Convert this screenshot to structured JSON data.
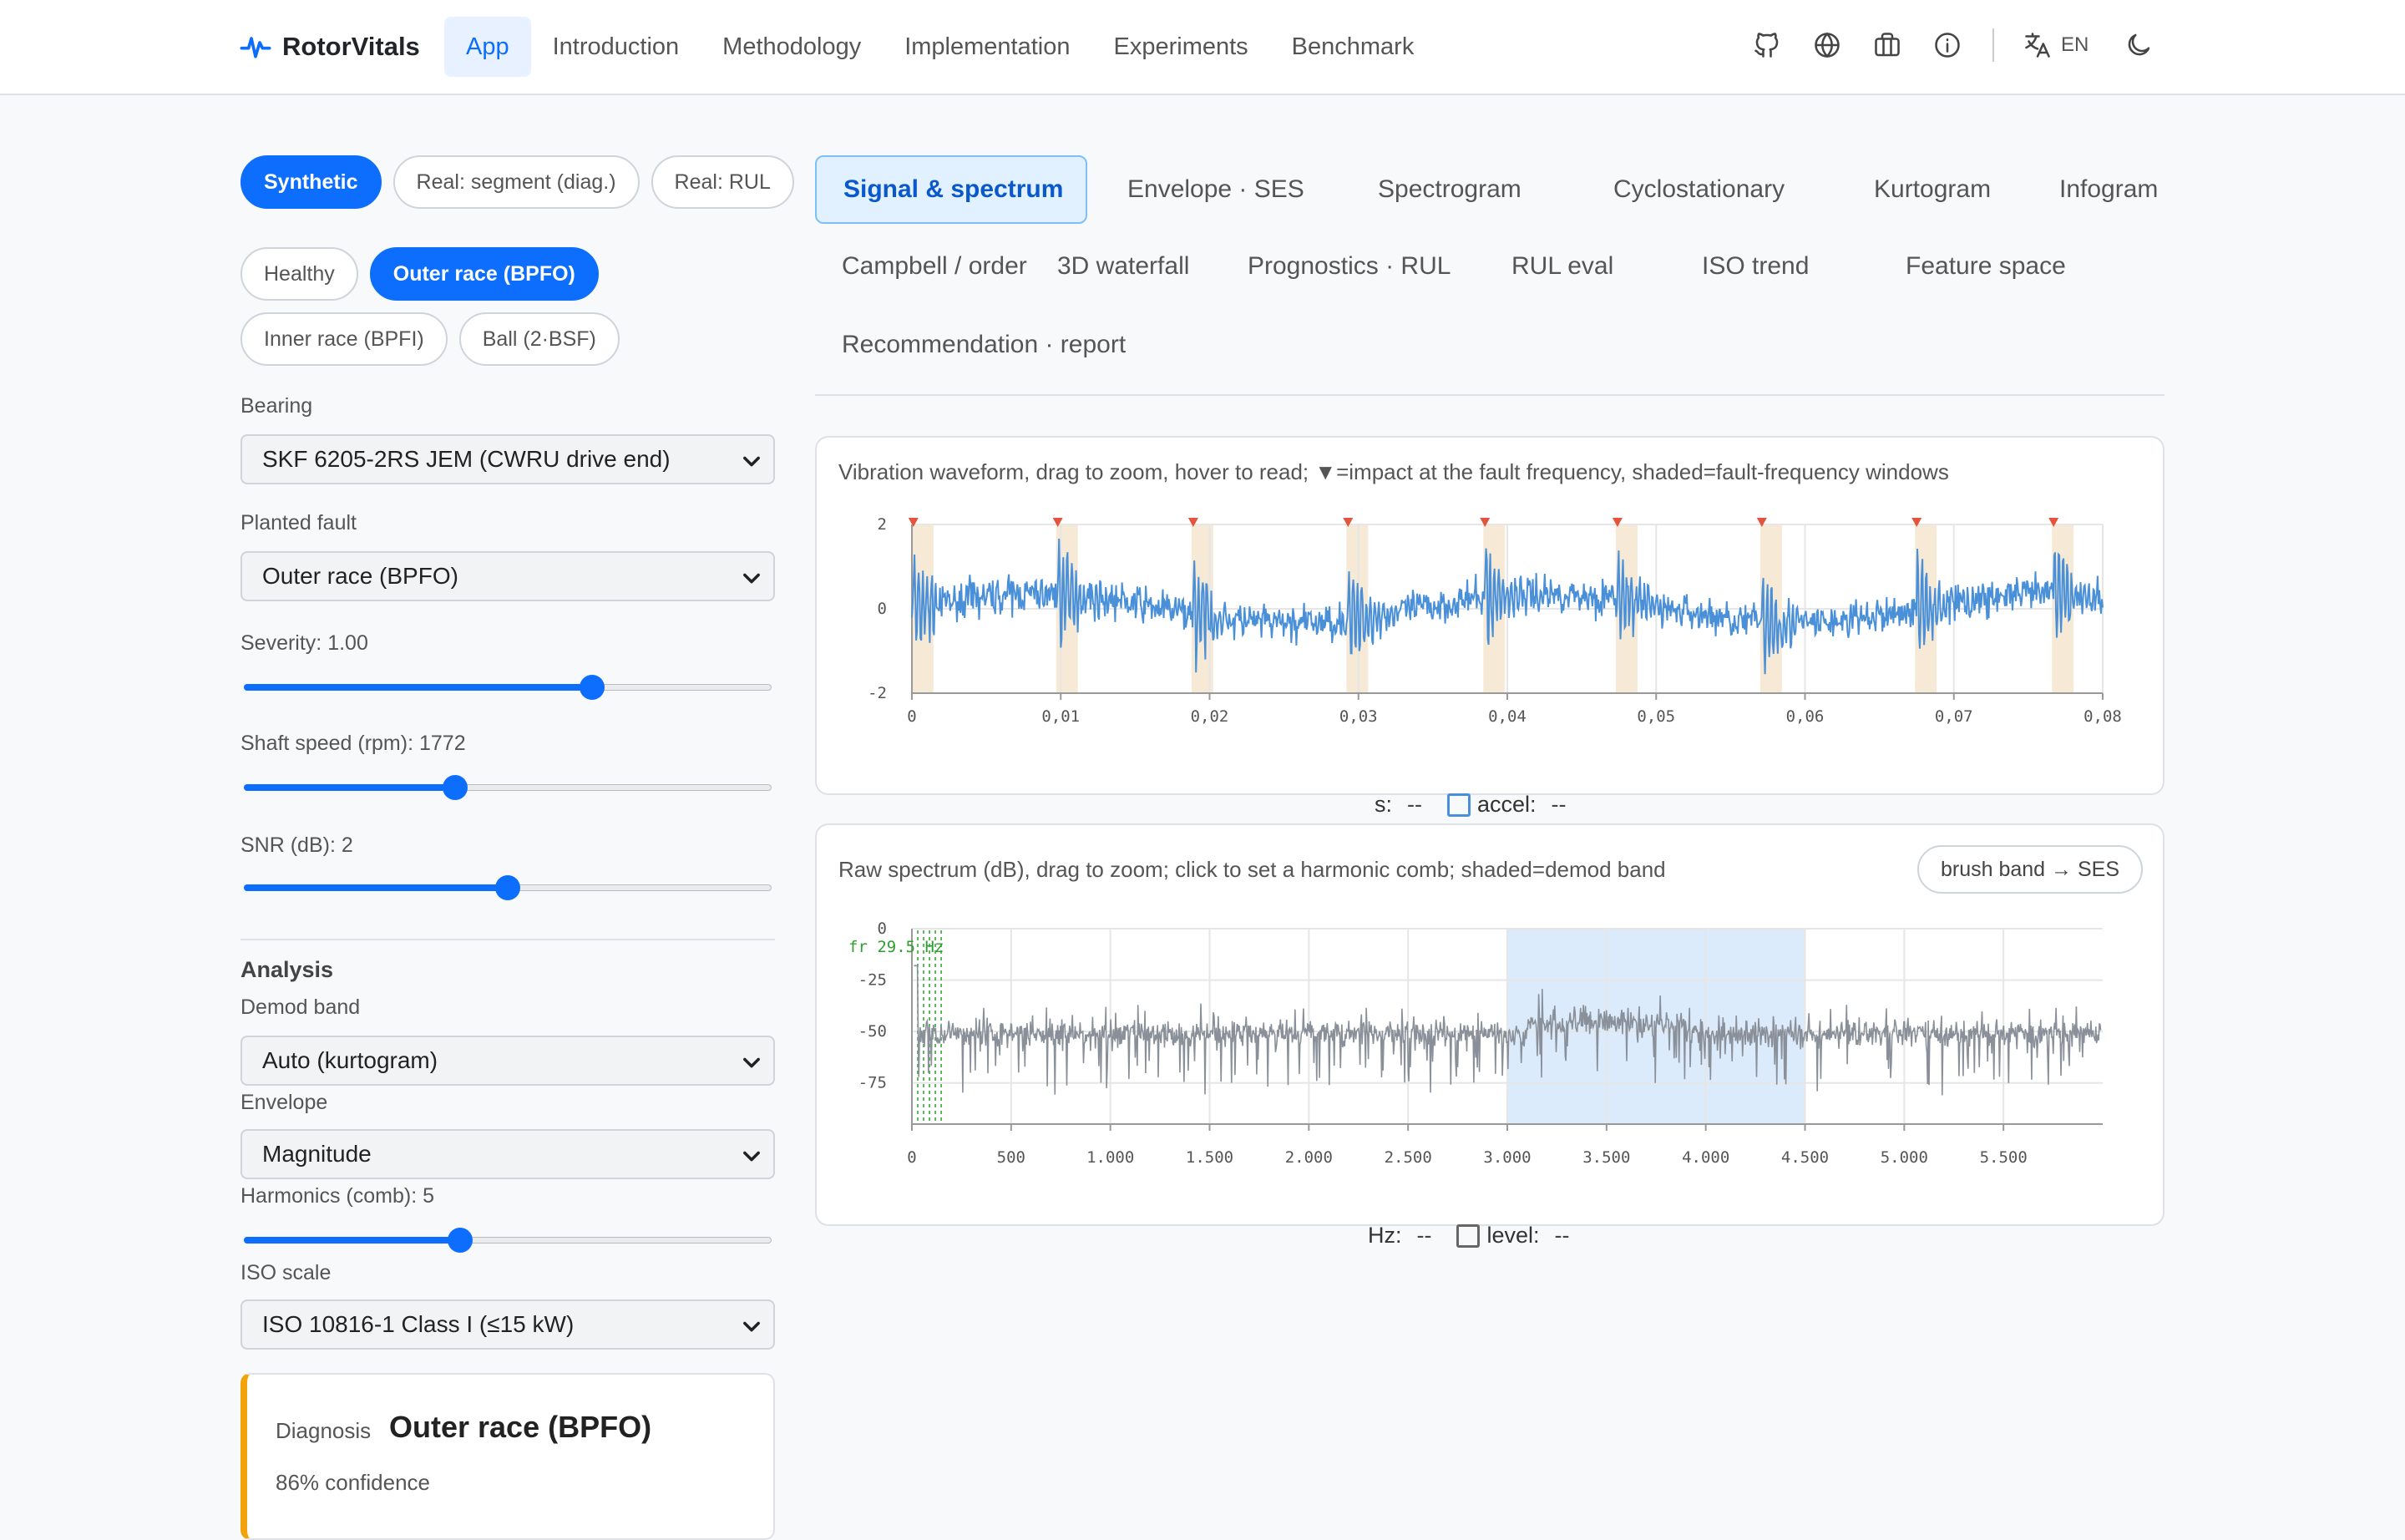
{
  "brand": {
    "name": "RotorVitals",
    "icon": "pulse-icon"
  },
  "nav": {
    "links": [
      "App",
      "Introduction",
      "Methodology",
      "Implementation",
      "Experiments",
      "Benchmark"
    ],
    "active": "App",
    "lang": "EN"
  },
  "sidebar": {
    "modes": [
      "Synthetic",
      "Real: segment (diag.)",
      "Real: RUL"
    ],
    "mode_active": "Synthetic",
    "conditions": [
      "Healthy",
      "Outer race (BPFO)",
      "Inner race (BPFI)",
      "Ball (2·BSF)"
    ],
    "condition_active": "Outer race (BPFO)",
    "bearing_label": "Bearing",
    "bearing_value": "SKF 6205-2RS JEM (CWRU drive end)",
    "fault_label": "Planted fault",
    "fault_value": "Outer race (BPFO)",
    "severity_label": "Severity: 1.00",
    "severity_level": 0.66,
    "speed_label": "Shaft speed (rpm): 1772",
    "speed_level": 0.4,
    "snr_label": "SNR (dB): 2",
    "snr_level": 0.5,
    "analysis_title": "Analysis",
    "demod_label": "Demod band",
    "demod_value": "Auto (kurtogram)",
    "envelope_label": "Envelope",
    "envelope_value": "Magnitude",
    "harmonics_label": "Harmonics (comb): 5",
    "harmonics_level": 0.41,
    "iso_label": "ISO scale",
    "iso_value": "ISO 10816-1 Class I (≤15 kW)",
    "diagnosis_label": "Diagnosis",
    "diagnosis_value": "Outer race (BPFO)",
    "diagnosis_confidence": "86% confidence"
  },
  "tabs": [
    "Signal & spectrum",
    "Envelope · SES",
    "Spectrogram",
    "Cyclostationary",
    "Kurtogram",
    "Infogram",
    "Campbell / order",
    "3D waterfall",
    "Prognostics · RUL",
    "RUL eval",
    "ISO trend",
    "Feature space",
    "Recommendation · report"
  ],
  "tab_active": "Signal & spectrum",
  "waveform": {
    "caption": "Vibration waveform, drag to zoom, hover to read; ▼=impact at the fault frequency, shaded=fault-frequency windows",
    "readout_x_label": "s:",
    "readout_x_value": "--",
    "readout_y_label": "accel:",
    "readout_y_value": "--"
  },
  "spectrum": {
    "caption": "Raw spectrum (dB), drag to zoom; click to set a harmonic comb; shaded=demod band",
    "brush_button": "brush band → SES",
    "readout_x_label": "Hz:",
    "readout_x_value": "--",
    "readout_y_label": "level:",
    "readout_y_value": "--",
    "fr_label": "fr 29.5 Hz"
  },
  "colors": {
    "accent": "#0d6efd",
    "waveform": "#4a90d9",
    "spectrum": "#8a9099",
    "impact": "#e5533d",
    "shade": "#f6ead6",
    "band": "#dcebfb",
    "fr": "#2ca02c",
    "diag_border": "#f0a30a"
  },
  "chart_data": [
    {
      "type": "line",
      "title": "",
      "xlabel": "",
      "ylabel": "",
      "xlim": [
        0,
        0.08
      ],
      "ylim": [
        -2,
        2
      ],
      "x_ticks": [
        "0",
        "0,01",
        "0,02",
        "0,03",
        "0,04",
        "0,05",
        "0,06",
        "0,07",
        "0,08"
      ],
      "y_ticks": [
        "2",
        "0",
        "-2"
      ],
      "impacts_s": [
        0.0001,
        0.0098,
        0.0189,
        0.0293,
        0.0385,
        0.0474,
        0.0571,
        0.0675,
        0.0767
      ],
      "series": [
        {
          "amplitude_range": [
            -2,
            2
          ]
        }
      ]
    },
    {
      "type": "line",
      "title": "",
      "xlabel": "",
      "ylabel": "",
      "xlim": [
        0,
        6000
      ],
      "ylim": [
        -100,
        0
      ],
      "x_ticks": [
        "0",
        "500",
        "1.000",
        "1.500",
        "2.000",
        "2.500",
        "3.000",
        "3.500",
        "4.000",
        "4.500",
        "5.000",
        "5.500"
      ],
      "y_ticks": [
        "0",
        "-25",
        "-50",
        "-75"
      ],
      "demod_band_hz": [
        3000,
        4500
      ],
      "fr_hz": 29.5,
      "series": [
        {
          "level_db_range": [
            -100,
            -15
          ]
        }
      ]
    }
  ]
}
